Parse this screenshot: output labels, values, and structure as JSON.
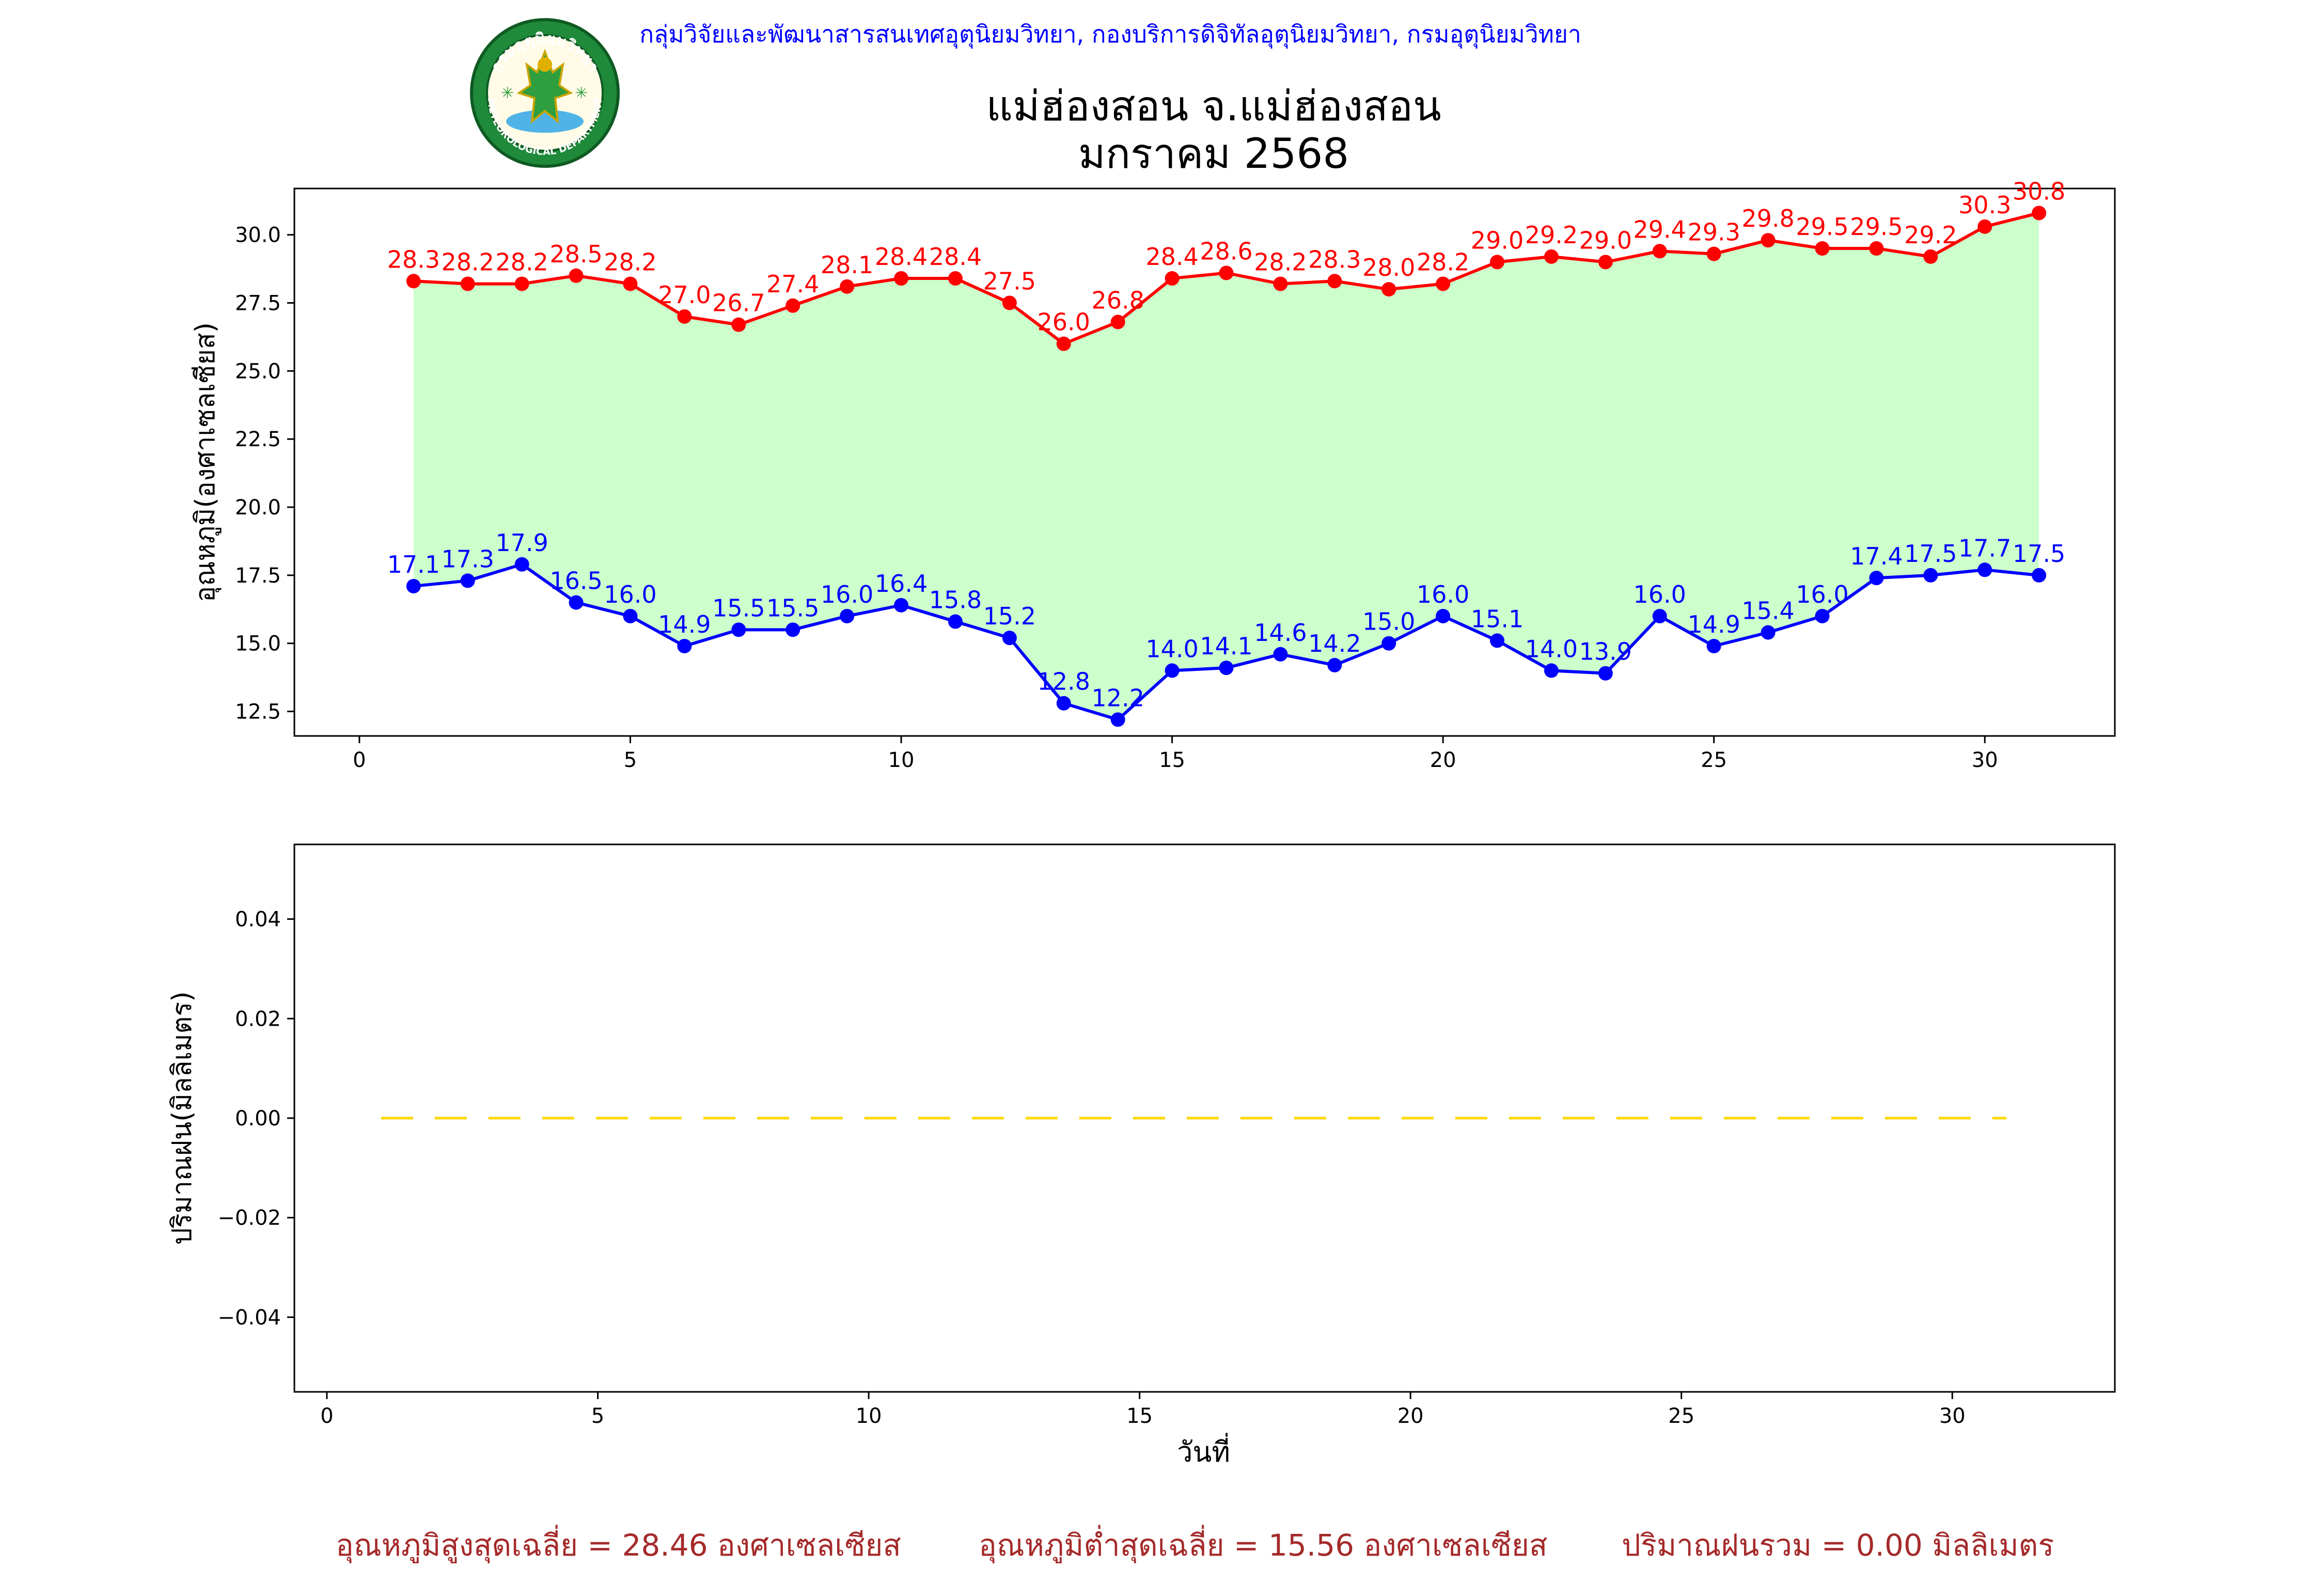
{
  "header": {
    "department": "กลุ่มวิจัยและพัฒนาสารสนเทศอุตุนิยมวิทยา, กองบริการดิจิทัลอุตุนิยมวิทยา, กรมอุตุนิยมวิทยา",
    "station": "แม่ฮ่องสอน จ.แม่ฮ่องสอน",
    "period": "มกราคม 2568",
    "logo_text_top": "กรมอุตุนิยมวิทยา",
    "logo_text_bottom": "METEOROLOGICAL DEPARTMENT"
  },
  "colors": {
    "max": "#ff0000",
    "min": "#0000ff",
    "fill": "#ccffcc",
    "rain": "#ffd700",
    "footer": "#a52a2a",
    "header": "#0000ff"
  },
  "chart_data": [
    {
      "type": "line",
      "title": "แม่ฮ่องสอน จ.แม่ฮ่องสอน มกราคม 2568",
      "xlabel": "",
      "ylabel": "อุณหภูมิ(องศาเซลเซียส)",
      "x": [
        1,
        2,
        3,
        4,
        5,
        6,
        7,
        8,
        9,
        10,
        11,
        12,
        13,
        14,
        15,
        16,
        17,
        18,
        19,
        20,
        21,
        22,
        23,
        24,
        25,
        26,
        27,
        28,
        29,
        30,
        31
      ],
      "series": [
        {
          "name": "max",
          "color": "#ff0000",
          "values": [
            28.3,
            28.2,
            28.2,
            28.5,
            28.2,
            27.0,
            26.7,
            27.4,
            28.1,
            28.4,
            28.4,
            27.5,
            26.0,
            26.8,
            28.4,
            28.6,
            28.2,
            28.3,
            28.0,
            28.2,
            29.0,
            29.2,
            29.0,
            29.4,
            29.3,
            29.8,
            29.5,
            29.5,
            29.2,
            30.3,
            30.8
          ]
        },
        {
          "name": "min",
          "color": "#0000ff",
          "values": [
            17.1,
            17.3,
            17.9,
            16.5,
            16.0,
            14.9,
            15.5,
            15.5,
            16.0,
            16.4,
            15.8,
            15.2,
            12.8,
            12.2,
            14.0,
            14.1,
            14.6,
            14.2,
            15.0,
            16.0,
            15.1,
            14.0,
            13.9,
            16.0,
            14.9,
            15.4,
            16.0,
            17.4,
            17.5,
            17.7,
            17.5
          ]
        }
      ],
      "xlim": [
        -1.2,
        32.4
      ],
      "ylim": [
        11.6,
        31.7
      ],
      "xticks": [
        0,
        5,
        10,
        15,
        20,
        25,
        30
      ],
      "yticks": [
        12.5,
        15.0,
        17.5,
        20.0,
        22.5,
        25.0,
        27.5,
        30.0
      ],
      "fill_between": true
    },
    {
      "type": "line",
      "title": "",
      "xlabel": "วันที่",
      "ylabel": "ปริมาณฝน(มิลลิเมตร)",
      "x": [
        1,
        2,
        3,
        4,
        5,
        6,
        7,
        8,
        9,
        10,
        11,
        12,
        13,
        14,
        15,
        16,
        17,
        18,
        19,
        20,
        21,
        22,
        23,
        24,
        25,
        26,
        27,
        28,
        29,
        30,
        31
      ],
      "series": [
        {
          "name": "rain",
          "color": "#ffd700",
          "style": "dashed",
          "values": [
            0,
            0,
            0,
            0,
            0,
            0,
            0,
            0,
            0,
            0,
            0,
            0,
            0,
            0,
            0,
            0,
            0,
            0,
            0,
            0,
            0,
            0,
            0,
            0,
            0,
            0,
            0,
            0,
            0,
            0,
            0
          ]
        }
      ],
      "xlim": [
        -0.6,
        33.0
      ],
      "ylim": [
        -0.055,
        0.055
      ],
      "xticks": [
        0,
        5,
        10,
        15,
        20,
        25,
        30
      ],
      "yticks": [
        -0.04,
        -0.02,
        0.0,
        0.02,
        0.04
      ],
      "ytick_labels": [
        "−0.04",
        "−0.02",
        "0.00",
        "0.02",
        "0.04"
      ]
    }
  ],
  "footer": {
    "avg_max": "อุณหภูมิสูงสุดเฉลี่ย = 28.46 องศาเซลเซียส",
    "avg_min": "อุณหภูมิต่ำสุดเฉลี่ย = 15.56 องศาเซลเซียส",
    "total_rain": "ปริมาณฝนรวม = 0.00 มิลลิเมตร"
  }
}
